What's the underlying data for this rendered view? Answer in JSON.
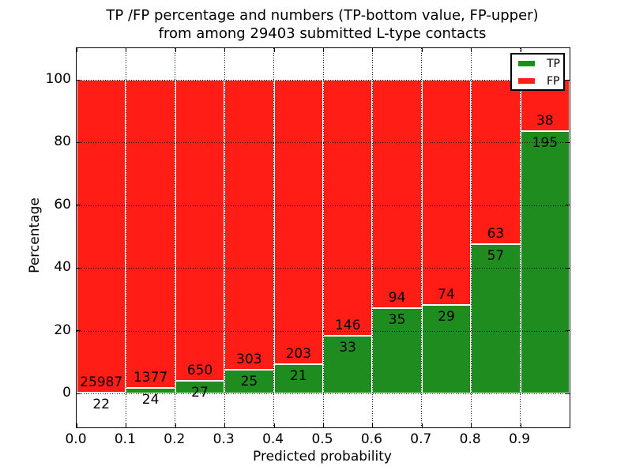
{
  "chart_data": {
    "type": "bar",
    "variant": "stacked-percentage",
    "title_lines": [
      "TP /FP percentage and numbers (TP-bottom value, FP-upper)",
      "from among 29403 submitted L-type contacts"
    ],
    "xlabel": "Predicted probability",
    "ylabel": "Percentage",
    "total_submitted": 29403,
    "bin_width": 0.1,
    "xlim": [
      0.0,
      1.0
    ],
    "ylim": [
      -11,
      110
    ],
    "x_tick_labels": [
      "0.0",
      "0.1",
      "0.2",
      "0.3",
      "0.4",
      "0.5",
      "0.6",
      "0.7",
      "0.8",
      "0.9"
    ],
    "y_ticks": [
      0,
      20,
      40,
      60,
      80,
      100
    ],
    "y_tick_labels": [
      "0",
      "20",
      "40",
      "60",
      "80",
      "100"
    ],
    "grid": "dotted",
    "legend_position": "upper right",
    "categories": [
      "0.0-0.1",
      "0.1-0.2",
      "0.2-0.3",
      "0.3-0.4",
      "0.4-0.5",
      "0.5-0.6",
      "0.6-0.7",
      "0.7-0.8",
      "0.8-0.9",
      "0.9-1.0"
    ],
    "series": [
      {
        "name": "TP",
        "color": "#1e8c1e",
        "counts": [
          22,
          24,
          27,
          25,
          21,
          33,
          35,
          29,
          57,
          195
        ]
      },
      {
        "name": "FP",
        "color": "#ff1d16",
        "counts": [
          25987,
          1377,
          650,
          303,
          203,
          146,
          94,
          74,
          63,
          38
        ]
      }
    ],
    "tp_percentages": [
      0.08,
      1.71,
      3.99,
      7.62,
      9.38,
      18.44,
      27.13,
      28.16,
      47.5,
      83.69
    ],
    "colors": {
      "tp": "#1e8c1e",
      "fp": "#ff1d16",
      "background": "#ffffff",
      "text": "#000000"
    }
  }
}
